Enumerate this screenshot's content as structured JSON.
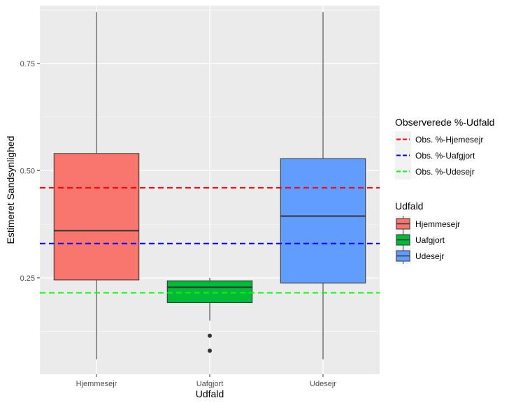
{
  "chart_data": {
    "type": "boxplot",
    "xlabel": "Udfald",
    "ylabel": "Estimeret Sandsynlighed",
    "ylim": [
      0.025,
      0.885
    ],
    "y_ticks": [
      0.25,
      0.5,
      0.75
    ],
    "y_tick_labels": [
      "0.25",
      "0.50",
      "0.75"
    ],
    "grid": true,
    "categories": [
      "Hjemmesejr",
      "Uafgjort",
      "Udesejr"
    ],
    "boxes": [
      {
        "category": "Hjemmesejr",
        "whisker_low": 0.06,
        "q1": 0.245,
        "median": 0.36,
        "q3": 0.54,
        "whisker_high": 0.87,
        "outliers": [],
        "color": "#F8766D"
      },
      {
        "category": "Uafgjort",
        "whisker_low": 0.15,
        "q1": 0.192,
        "median": 0.228,
        "q3": 0.243,
        "whisker_high": 0.25,
        "outliers": [
          0.115,
          0.08
        ],
        "color": "#00BA38"
      },
      {
        "category": "Udesejr",
        "whisker_low": 0.06,
        "q1": 0.238,
        "median": 0.394,
        "q3": 0.528,
        "whisker_high": 0.87,
        "outliers": [],
        "color": "#619CFF"
      }
    ],
    "hlines": [
      {
        "name": "Obs. %-Hjemesejr",
        "y": 0.46,
        "color": "#FF0000"
      },
      {
        "name": "Obs. %-Uafgjort",
        "y": 0.33,
        "color": "#0000FF"
      },
      {
        "name": "Obs. %-Udesejr",
        "y": 0.215,
        "color": "#00FF00"
      }
    ],
    "legend_lines": {
      "title": "Observerede %-Udfald",
      "placement": "right",
      "items": [
        {
          "label": "Obs. %-Hjemesejr",
          "color": "#FF0000"
        },
        {
          "label": "Obs. %-Uafgjort",
          "color": "#0000FF"
        },
        {
          "label": "Obs. %-Udesejr",
          "color": "#00FF00"
        }
      ]
    },
    "legend_fill": {
      "title": "Udfald",
      "placement": "right",
      "items": [
        {
          "label": "Hjemmesejr",
          "color": "#F8766D"
        },
        {
          "label": "Uafgjort",
          "color": "#00BA38"
        },
        {
          "label": "Udesejr",
          "color": "#619CFF"
        }
      ]
    },
    "panel_background": "#EBEBEB",
    "grid_color": "#FFFFFF"
  }
}
